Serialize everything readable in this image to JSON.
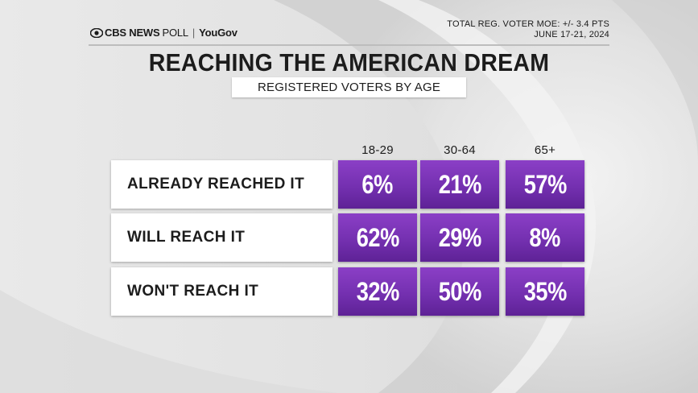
{
  "header": {
    "brand_cbs": "CBS NEWS",
    "brand_poll": "POLL",
    "brand_separator": "|",
    "brand_yougov": "YouGov",
    "moe": "TOTAL REG. VOTER MOE: +/- 3.4 PTS",
    "dates": "JUNE 17-21, 2024"
  },
  "title": "REACHING THE AMERICAN DREAM",
  "subtitle": "REGISTERED VOTERS BY AGE",
  "colors": {
    "cell_purple": "#7a33b8",
    "label_bg": "#ffffff",
    "text_dark": "#1c1c1c"
  },
  "chart_data": {
    "type": "table",
    "title": "REACHING THE AMERICAN DREAM",
    "subtitle": "REGISTERED VOTERS BY AGE",
    "columns": [
      "18-29",
      "30-64",
      "65+"
    ],
    "rows": [
      {
        "label": "ALREADY REACHED IT",
        "values": [
          "6%",
          "21%",
          "57%"
        ]
      },
      {
        "label": "WILL REACH IT",
        "values": [
          "62%",
          "29%",
          "8%"
        ]
      },
      {
        "label": "WON'T REACH IT",
        "values": [
          "32%",
          "50%",
          "35%"
        ]
      }
    ]
  }
}
